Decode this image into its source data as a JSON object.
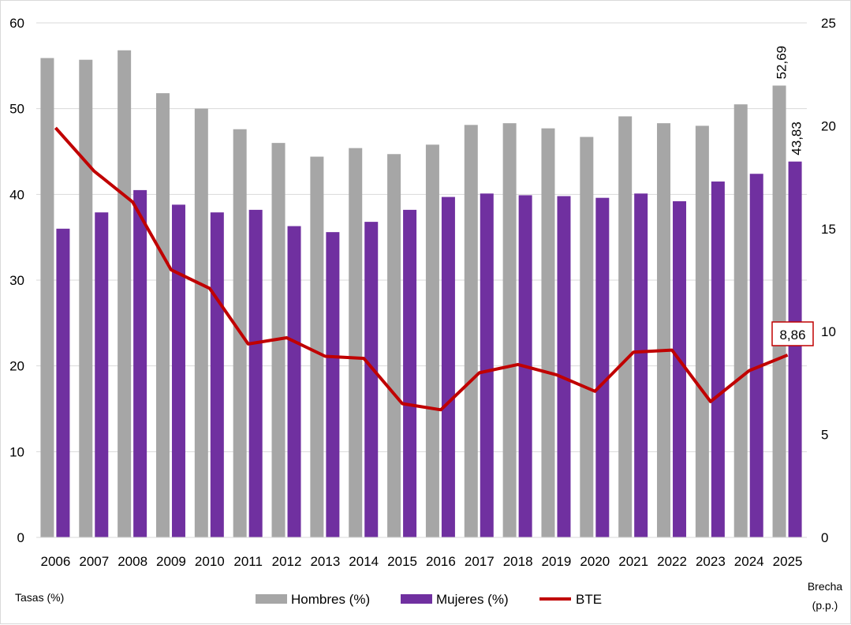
{
  "chart_data": {
    "type": "bar+line",
    "categories": [
      "2006",
      "2007",
      "2008",
      "2009",
      "2010",
      "2011",
      "2012",
      "2013",
      "2014",
      "2015",
      "2016",
      "2017",
      "2018",
      "2019",
      "2020",
      "2021",
      "2022",
      "2023",
      "2024",
      "2025"
    ],
    "series": [
      {
        "name": "Hombres (%)",
        "type": "bar",
        "axis": "left",
        "color": "#a6a6a6",
        "values": [
          55.9,
          55.7,
          56.8,
          51.8,
          50.0,
          47.6,
          46.0,
          44.4,
          45.4,
          44.7,
          45.8,
          48.1,
          48.3,
          47.7,
          46.7,
          49.1,
          48.3,
          48.0,
          50.5,
          52.69
        ]
      },
      {
        "name": "Mujeres (%)",
        "type": "bar",
        "axis": "left",
        "color": "#7030a0",
        "values": [
          36.0,
          37.9,
          40.5,
          38.8,
          37.9,
          38.2,
          36.3,
          35.6,
          36.8,
          38.2,
          39.7,
          40.1,
          39.9,
          39.8,
          39.6,
          40.1,
          39.2,
          41.5,
          42.4,
          43.83
        ]
      },
      {
        "name": "BTE",
        "type": "line",
        "axis": "right",
        "color": "#c00000",
        "values": [
          19.9,
          17.8,
          16.3,
          13.0,
          12.1,
          9.4,
          9.7,
          8.8,
          8.7,
          6.5,
          6.2,
          8.0,
          8.4,
          7.9,
          7.1,
          9.0,
          9.1,
          6.6,
          8.1,
          8.86
        ]
      }
    ],
    "data_labels": {
      "hombres_last": "52,69",
      "mujeres_last": "43,83",
      "bte_last": "8,86"
    },
    "left_axis": {
      "label": "Tasas (%)",
      "ylim": [
        0,
        60
      ],
      "ticks": [
        "0",
        "10",
        "20",
        "30",
        "40",
        "50",
        "60"
      ]
    },
    "right_axis": {
      "label_line1": "Brecha",
      "label_line2": "(p.p.)",
      "ylim": [
        0,
        25
      ],
      "ticks": [
        "0",
        "5",
        "10",
        "15",
        "20",
        "25"
      ]
    },
    "grid": true,
    "legend": "bottom"
  }
}
